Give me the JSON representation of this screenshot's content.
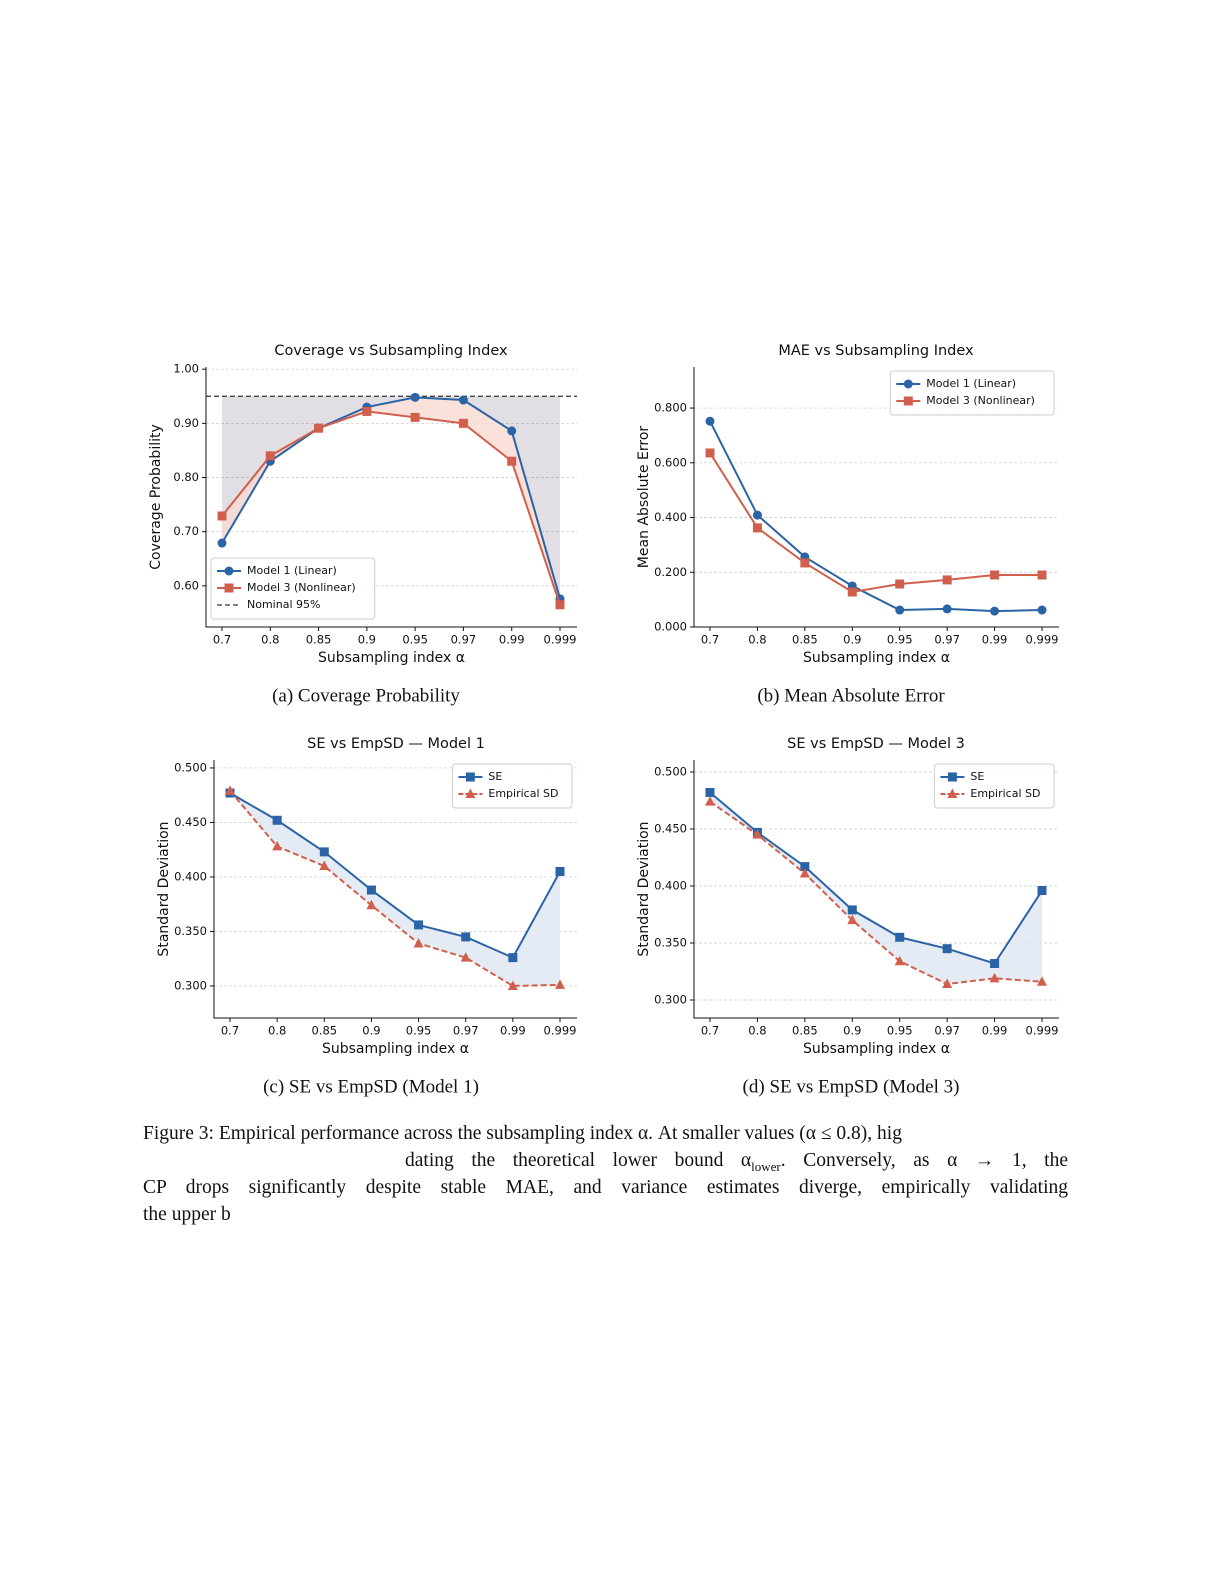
{
  "chart_data": [
    {
      "type": "line",
      "title": "Coverage vs Subsampling Index",
      "caption": "(a) Coverage Probability",
      "x_label": "Subsampling index α",
      "y_label": "Coverage Probability",
      "categories": [
        "0.7",
        "0.8",
        "0.85",
        "0.9",
        "0.95",
        "0.97",
        "0.99",
        "0.999"
      ],
      "series": [
        {
          "name": "Model 1 (Linear)",
          "color": "#2a63a6",
          "marker": "o",
          "linestyle": "solid",
          "values": [
            0.679,
            0.83,
            0.891,
            0.93,
            0.948,
            0.943,
            0.886,
            0.576
          ]
        },
        {
          "name": "Model 3 (Nonlinear)",
          "color": "#d0604d",
          "marker": "s",
          "linestyle": "solid",
          "values": [
            0.729,
            0.84,
            0.891,
            0.922,
            0.911,
            0.9,
            0.83,
            0.565
          ]
        }
      ],
      "reference": {
        "name": "Nominal 95%",
        "value": 0.95,
        "color": "#333333"
      },
      "fill_color": "#f9d9d1",
      "ylim": [
        0.524,
        1.004
      ],
      "yticks": [
        {
          "value": 0.6,
          "label": "0.60"
        },
        {
          "value": 0.7,
          "label": "0.70"
        },
        {
          "value": 0.8,
          "label": "0.80"
        },
        {
          "value": 0.9,
          "label": "0.90"
        },
        {
          "value": 1.0,
          "label": "1.00"
        }
      ],
      "grid": true,
      "legend": "lower left"
    },
    {
      "type": "line",
      "title": "MAE vs Subsampling Index",
      "caption": "(b) Mean Absolute Error",
      "x_label": "Subsampling index α",
      "y_label": "Mean Absolute Error",
      "categories": [
        "0.7",
        "0.8",
        "0.85",
        "0.9",
        "0.95",
        "0.97",
        "0.99",
        "0.999"
      ],
      "series": [
        {
          "name": "Model 1 (Linear)",
          "color": "#2a63a6",
          "marker": "o",
          "linestyle": "solid",
          "values": [
            0.752,
            0.409,
            0.256,
            0.15,
            0.062,
            0.066,
            0.058,
            0.062
          ]
        },
        {
          "name": "Model 3 (Nonlinear)",
          "color": "#d0604d",
          "marker": "s",
          "linestyle": "solid",
          "values": [
            0.636,
            0.362,
            0.234,
            0.128,
            0.157,
            0.172,
            0.19,
            0.19
          ]
        }
      ],
      "ylim": [
        0,
        0.95
      ],
      "yticks": [
        {
          "value": 0,
          "label": "0.000"
        },
        {
          "value": 0.2,
          "label": "0.200"
        },
        {
          "value": 0.4,
          "label": "0.400"
        },
        {
          "value": 0.6,
          "label": "0.600"
        },
        {
          "value": 0.8,
          "label": "0.800"
        }
      ],
      "grid": true,
      "legend": "upper right"
    },
    {
      "type": "line",
      "title": "SE vs EmpSD — Model 1",
      "caption": "(c) SE vs EmpSD (Model 1)",
      "x_label": "Subsampling index α",
      "y_label": "Standard Deviation",
      "categories": [
        "0.7",
        "0.8",
        "0.85",
        "0.9",
        "0.95",
        "0.97",
        "0.99",
        "0.999"
      ],
      "series": [
        {
          "name": "SE",
          "color": "#2a63a6",
          "marker": "s",
          "linestyle": "solid",
          "values": [
            0.477,
            0.452,
            0.423,
            0.388,
            0.356,
            0.345,
            0.326,
            0.405
          ]
        },
        {
          "name": "Empirical SD",
          "color": "#d0604d",
          "marker": "^",
          "linestyle": "dashed",
          "values": [
            0.479,
            0.428,
            0.41,
            0.374,
            0.339,
            0.326,
            0.3,
            0.301
          ]
        }
      ],
      "fill_color": "#dde6f2",
      "ylim": [
        0.2706,
        0.5073
      ],
      "yticks": [
        {
          "value": 0.3,
          "label": "0.300"
        },
        {
          "value": 0.35,
          "label": "0.350"
        },
        {
          "value": 0.4,
          "label": "0.400"
        },
        {
          "value": 0.45,
          "label": "0.450"
        },
        {
          "value": 0.5,
          "label": "0.500"
        }
      ],
      "grid": true,
      "legend": "upper right"
    },
    {
      "type": "line",
      "title": "SE vs EmpSD — Model 3",
      "caption": "(d) SE vs EmpSD (Model 3)",
      "x_label": "Subsampling index α",
      "y_label": "Standard Deviation",
      "categories": [
        "0.7",
        "0.8",
        "0.85",
        "0.9",
        "0.95",
        "0.97",
        "0.99",
        "0.999"
      ],
      "series": [
        {
          "name": "SE",
          "color": "#2a63a6",
          "marker": "s",
          "linestyle": "solid",
          "values": [
            0.482,
            0.447,
            0.417,
            0.379,
            0.355,
            0.345,
            0.332,
            0.396
          ]
        },
        {
          "name": "Empirical SD",
          "color": "#d0604d",
          "marker": "^",
          "linestyle": "dashed",
          "values": [
            0.474,
            0.445,
            0.411,
            0.37,
            0.334,
            0.314,
            0.319,
            0.316
          ]
        }
      ],
      "fill_color": "#dde6f2",
      "ylim": [
        0.2842,
        0.5105
      ],
      "yticks": [
        {
          "value": 0.3,
          "label": "0.300"
        },
        {
          "value": 0.35,
          "label": "0.350"
        },
        {
          "value": 0.4,
          "label": "0.400"
        },
        {
          "value": 0.45,
          "label": "0.450"
        },
        {
          "value": 0.5,
          "label": "0.500"
        }
      ],
      "grid": true,
      "legend": "upper right"
    }
  ],
  "caption": {
    "lines": [
      "Figure 3: Empirical performance across the subsampling index α. At smaller values (α ≤ 0.8), hig",
      {
        "text": "dating the theoretical lower bound α",
        "sub": "lower",
        "after": ". Conversely, as α → 1, the"
      },
      "CP drops significantly despite stable MAE, and variance estimates diverge, empirically validating",
      "the upper b"
    ]
  }
}
